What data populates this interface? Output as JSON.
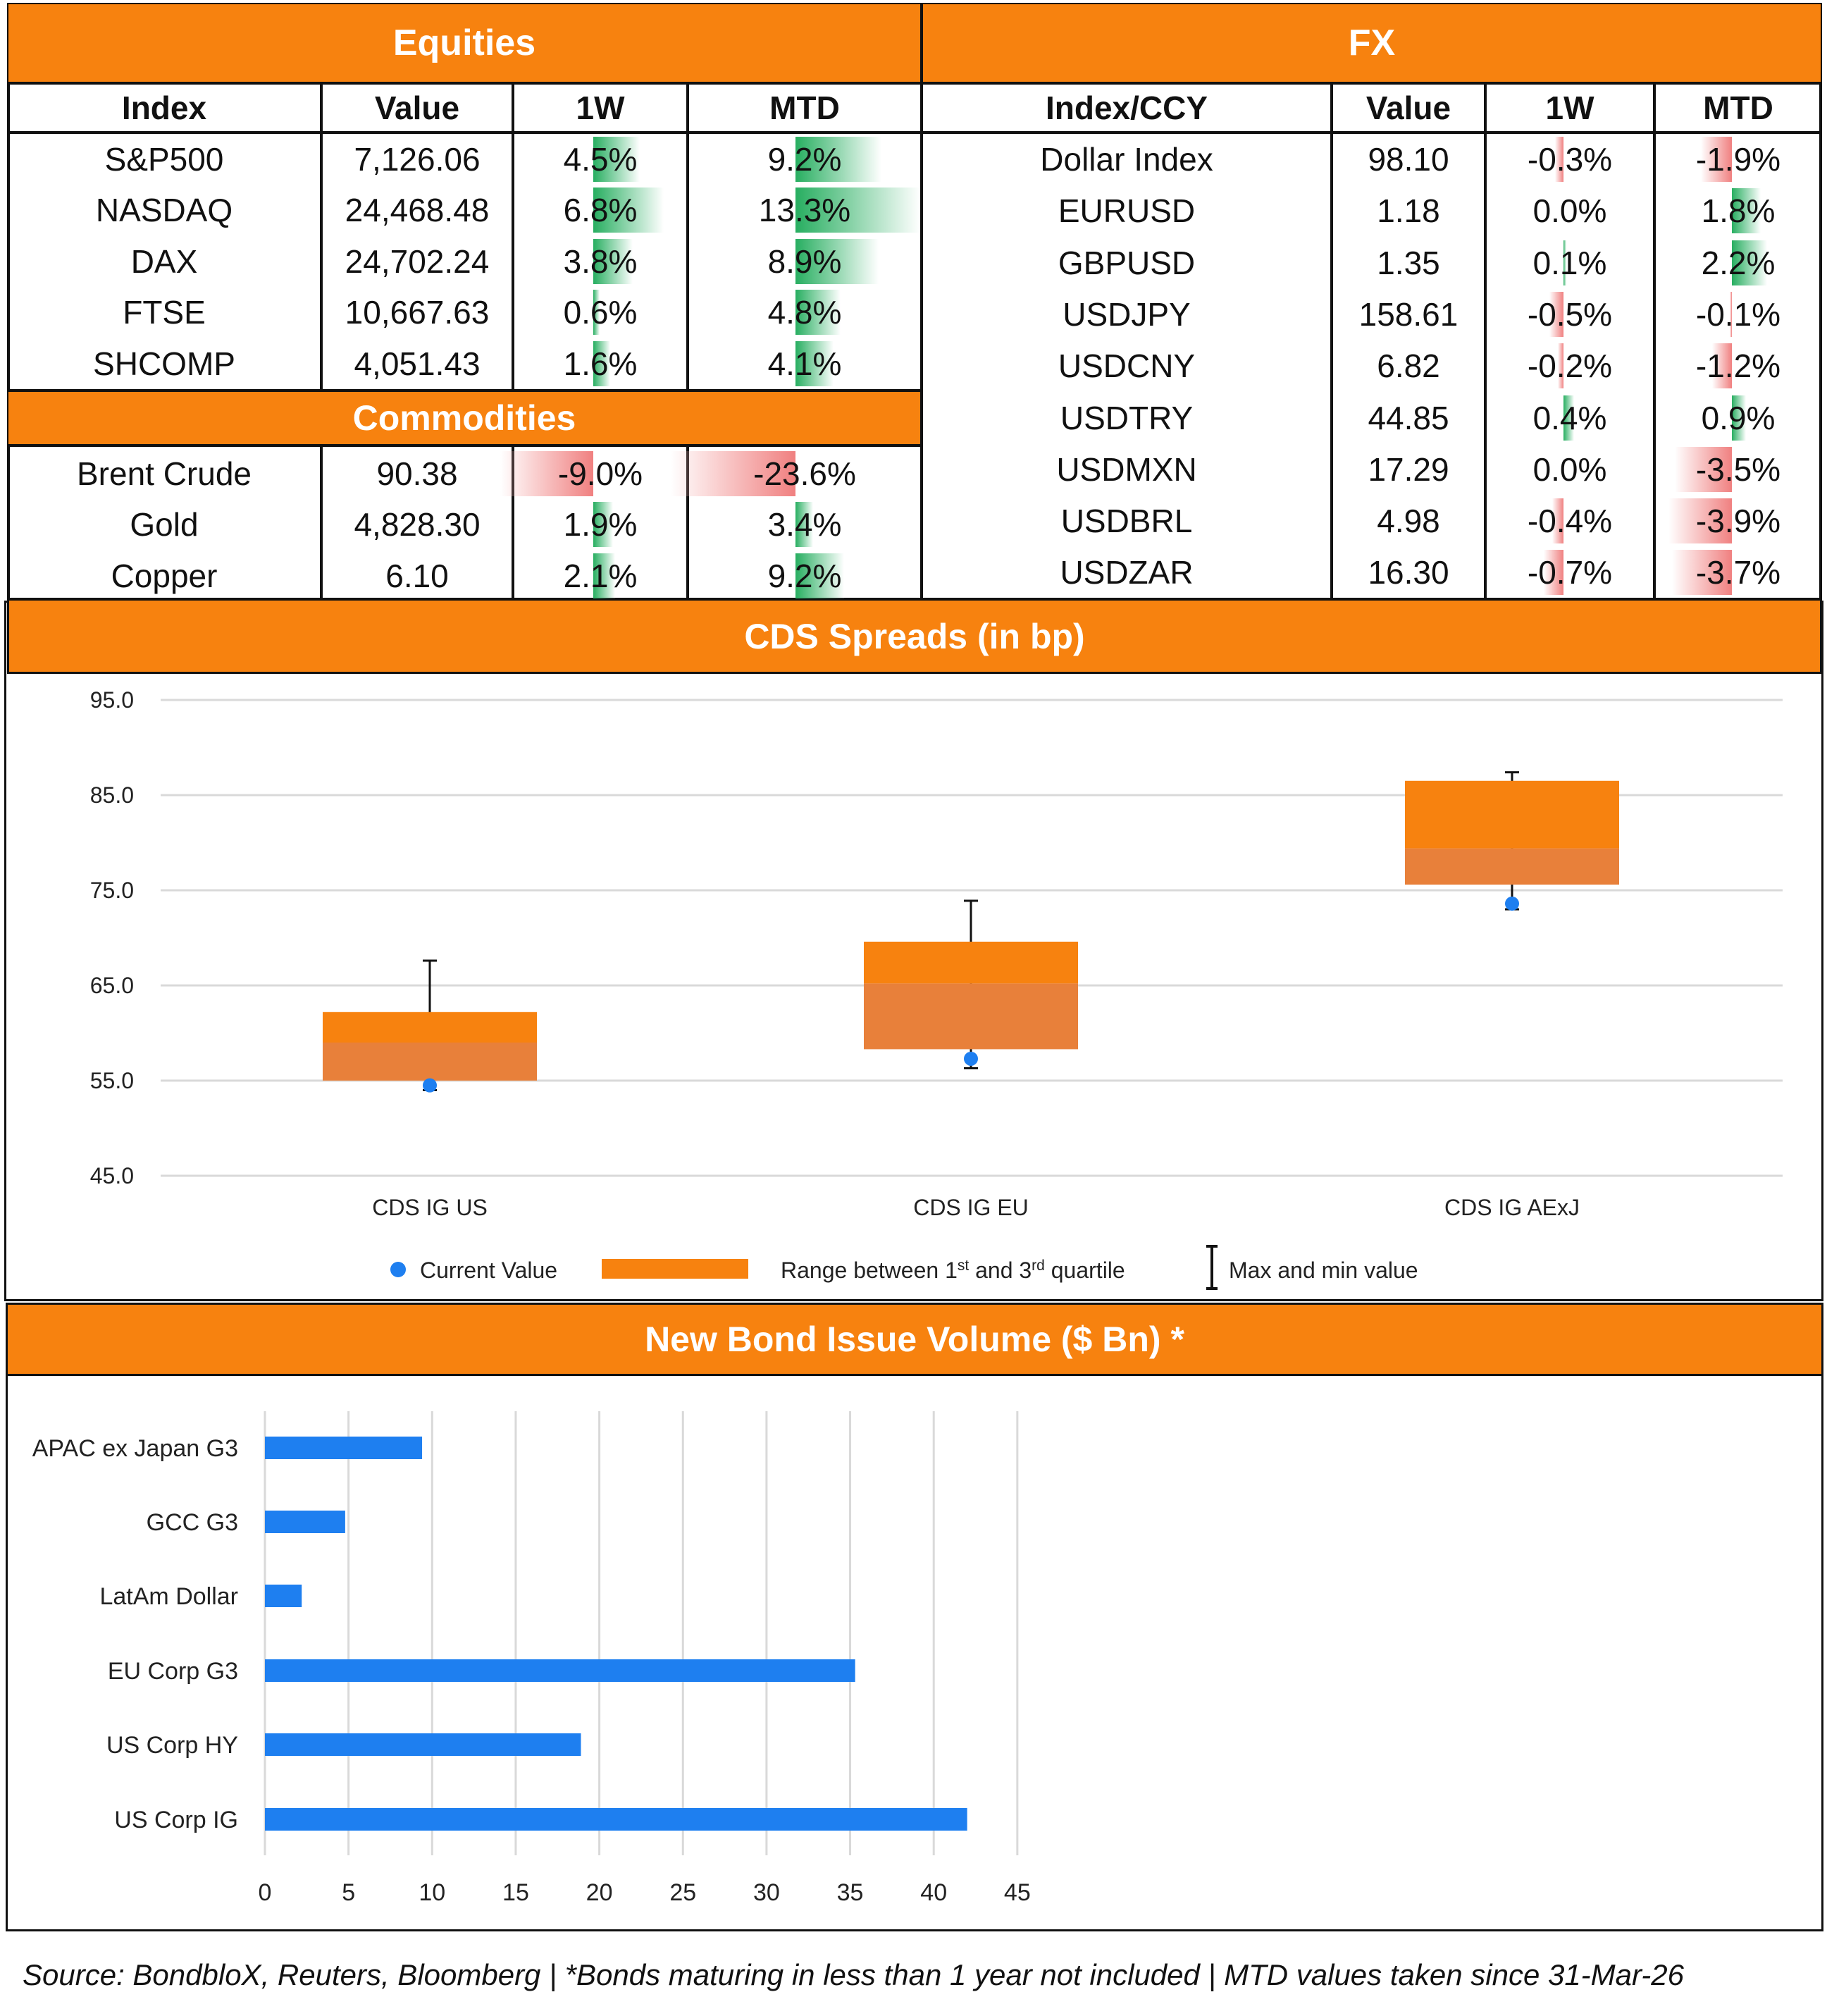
{
  "equities": {
    "title": "Equities",
    "headers": [
      "Index",
      "Value",
      "1W",
      "MTD"
    ],
    "rows": [
      {
        "name": "S&P500",
        "value": "7,126.06",
        "w1": "4.5%",
        "mtd": "9.2%"
      },
      {
        "name": "NASDAQ",
        "value": "24,468.48",
        "w1": "6.8%",
        "mtd": "13.3%"
      },
      {
        "name": "DAX",
        "value": "24,702.24",
        "w1": "3.8%",
        "mtd": "8.9%"
      },
      {
        "name": "FTSE",
        "value": "10,667.63",
        "w1": "0.6%",
        "mtd": "4.8%"
      },
      {
        "name": "SHCOMP",
        "value": "4,051.43",
        "w1": "1.6%",
        "mtd": "4.1%"
      }
    ]
  },
  "commodities": {
    "title": "Commodities",
    "rows": [
      {
        "name": "Brent Crude",
        "value": "90.38",
        "w1": "-9.0%",
        "mtd": "-23.6%"
      },
      {
        "name": "Gold",
        "value": "4,828.30",
        "w1": "1.9%",
        "mtd": "3.4%"
      },
      {
        "name": "Copper",
        "value": "6.10",
        "w1": "2.1%",
        "mtd": "9.2%"
      }
    ]
  },
  "fx": {
    "title": "FX",
    "headers": [
      "Index/CCY",
      "Value",
      "1W",
      "MTD"
    ],
    "rows": [
      {
        "name": "Dollar Index",
        "value": "98.10",
        "w1": "-0.3%",
        "mtd": "-1.9%"
      },
      {
        "name": "EURUSD",
        "value": "1.18",
        "w1": "0.0%",
        "mtd": "1.8%"
      },
      {
        "name": "GBPUSD",
        "value": "1.35",
        "w1": "0.1%",
        "mtd": "2.2%"
      },
      {
        "name": "USDJPY",
        "value": "158.61",
        "w1": "-0.5%",
        "mtd": "-0.1%"
      },
      {
        "name": "USDCNY",
        "value": "6.82",
        "w1": "-0.2%",
        "mtd": "-1.2%"
      },
      {
        "name": "USDTRY",
        "value": "44.85",
        "w1": "0.4%",
        "mtd": "0.9%"
      },
      {
        "name": "USDMXN",
        "value": "17.29",
        "w1": "0.0%",
        "mtd": "-3.5%"
      },
      {
        "name": "USDBRL",
        "value": "4.98",
        "w1": "-0.4%",
        "mtd": "-3.9%"
      },
      {
        "name": "USDZAR",
        "value": "16.30",
        "w1": "-0.7%",
        "mtd": "-3.7%"
      }
    ]
  },
  "colors": {
    "accent": "#F7820F",
    "positive": "#27AE60",
    "negative": "#F08080",
    "bond_bar": "#1E7FF0",
    "box": "#F7820F",
    "box_lower": "#E8803A",
    "dot": "#1E7FF0"
  },
  "chart_data": [
    {
      "type": "box",
      "title": "CDS Spreads (in bp)",
      "categories": [
        "CDS IG US",
        "CDS IG EU",
        "CDS IG AExJ"
      ],
      "q1": [
        55.0,
        58.3,
        75.6
      ],
      "median": [
        59.0,
        65.2,
        79.4
      ],
      "q3": [
        62.2,
        69.6,
        86.5
      ],
      "min": [
        54.0,
        56.3,
        73.0
      ],
      "max": [
        67.6,
        73.9,
        87.4
      ],
      "current": [
        54.5,
        57.3,
        73.6
      ],
      "ylim": [
        45,
        95
      ],
      "yticks": [
        "95.0",
        "85.0",
        "75.0",
        "65.0",
        "55.0",
        "45.0"
      ],
      "yticks_values": [
        95,
        85,
        75,
        65,
        55,
        45
      ],
      "legend": {
        "current": "Current Value",
        "range_pre": "Range between 1",
        "range_sup1": "st",
        "range_mid": " and 3",
        "range_sup2": "rd",
        "range_post": " quartile",
        "minmax": "Max and min value"
      }
    },
    {
      "type": "bar",
      "orientation": "horizontal",
      "title": "New Bond Issue Volume ($ Bn) *",
      "categories": [
        "APAC ex Japan G3",
        "GCC G3",
        "LatAm Dollar",
        "EU Corp G3",
        "US Corp HY",
        "US Corp IG"
      ],
      "values": [
        9.4,
        4.8,
        2.2,
        35.3,
        18.9,
        42.0
      ],
      "xlim": [
        0,
        45
      ],
      "xticks": [
        "0",
        "5",
        "10",
        "15",
        "20",
        "25",
        "30",
        "35",
        "40",
        "45"
      ],
      "xticks_values": [
        0,
        5,
        10,
        15,
        20,
        25,
        30,
        35,
        40,
        45
      ]
    }
  ],
  "footer": "Source: BondbloX, Reuters, Bloomberg | *Bonds maturing in less than 1 year not included | MTD values taken since 31-Mar-26"
}
